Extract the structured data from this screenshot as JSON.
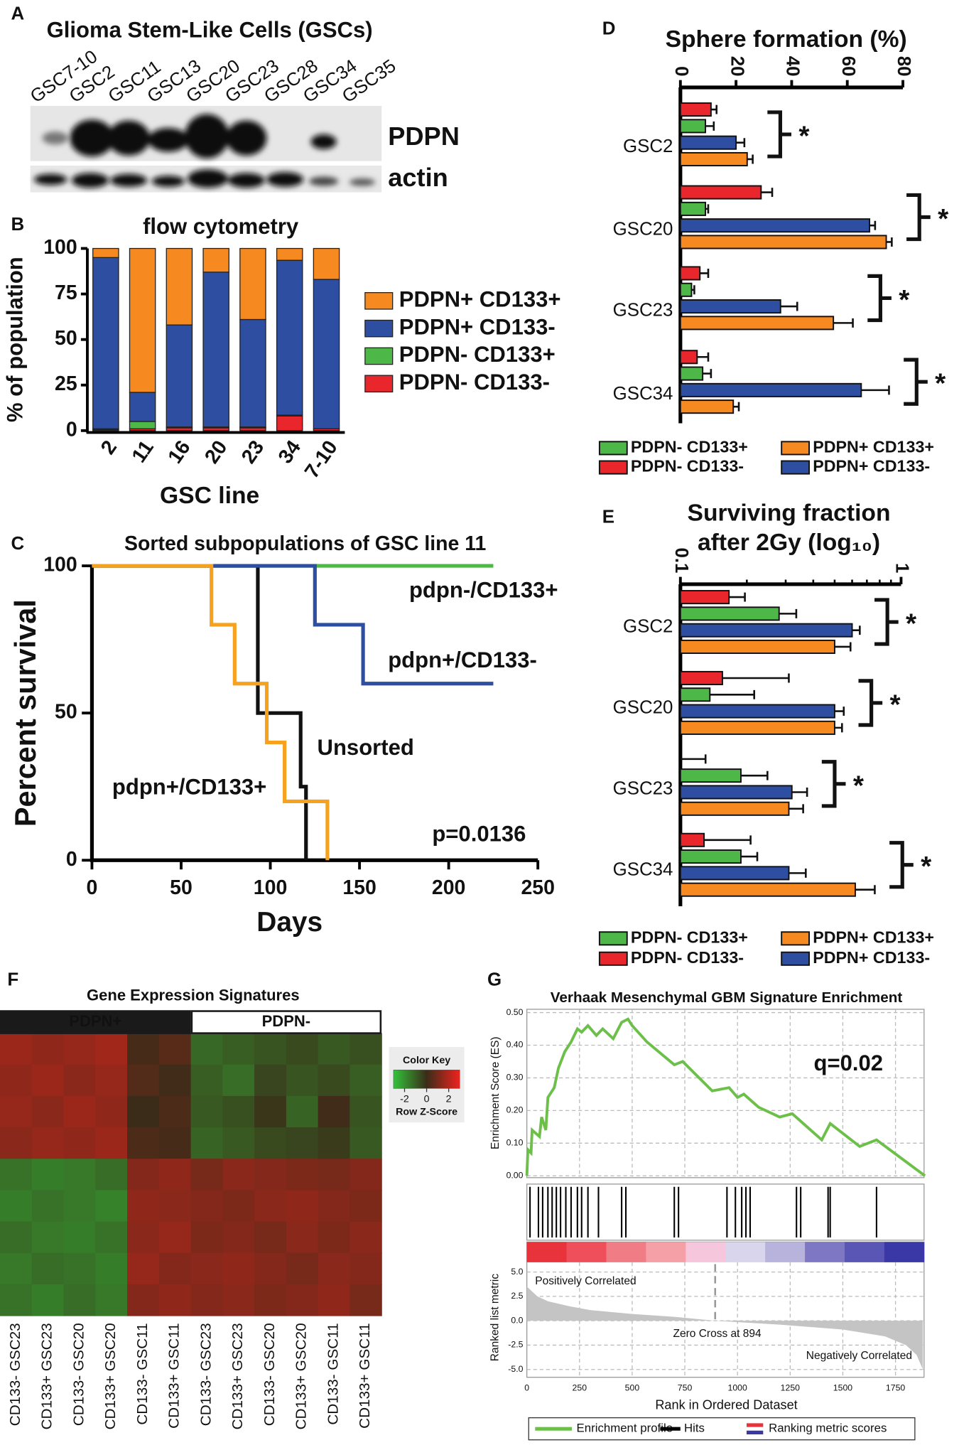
{
  "panel_labels": [
    "A",
    "B",
    "C",
    "D",
    "E",
    "F",
    "G"
  ],
  "blot": {
    "title": "Glioma Stem-Like Cells (GSCs)",
    "lanes": [
      "GSC7-10",
      "GSC2",
      "GSC11",
      "GSC13",
      "GSC20",
      "GSC23",
      "GSC28",
      "GSC34",
      "GSC35"
    ],
    "bands": [
      "PDPN",
      "actin"
    ]
  },
  "chart_data": [
    {
      "type": "bar",
      "stacked": true,
      "title": "flow cytometry",
      "xlabel": "GSC line",
      "ylabel": "% of population",
      "categories": [
        "2",
        "11",
        "16",
        "20",
        "23",
        "34",
        "7-10"
      ],
      "series": [
        {
          "name": "PDPN- CD133-",
          "color": "#e8262b",
          "values": [
            0.5,
            1,
            1.5,
            1.5,
            1.5,
            8,
            1
          ]
        },
        {
          "name": "PDPN- CD133+",
          "color": "#4db848",
          "values": [
            0.5,
            4,
            0.5,
            0.5,
            0.5,
            0.5,
            0
          ]
        },
        {
          "name": "PDPN+ CD133-",
          "color": "#2e4ea2",
          "values": [
            94,
            16,
            56,
            85,
            59,
            85,
            82
          ]
        },
        {
          "name": "PDPN+ CD133+",
          "color": "#f6891f",
          "values": [
            5,
            79,
            42,
            13,
            39,
            6.5,
            17
          ]
        }
      ],
      "ylim": [
        0,
        100
      ],
      "yticks": [
        0,
        25,
        50,
        75,
        100
      ]
    },
    {
      "type": "step",
      "title": "Sorted subpopulations of GSC line 11",
      "xlabel": "Days",
      "ylabel": "Percent survival",
      "series": [
        {
          "name": "pdpn-/CD133+",
          "color": "#4db848",
          "x": [
            0,
            225
          ],
          "y": [
            100,
            100
          ]
        },
        {
          "name": "Unsorted",
          "color": "#111111",
          "x": [
            0,
            93,
            117,
            120
          ],
          "y": [
            100,
            50,
            25,
            0
          ]
        },
        {
          "name": "pdpn+/CD133-",
          "color": "#2e4ea2",
          "x": [
            0,
            125,
            152,
            225
          ],
          "y": [
            100,
            80,
            60,
            60
          ]
        },
        {
          "name": "pdpn+/CD133+",
          "color": "#f6a21f",
          "x": [
            0,
            67,
            80,
            98,
            108,
            132
          ],
          "y": [
            100,
            80,
            60,
            40,
            20,
            0
          ]
        }
      ],
      "annotations": [
        "p=0.0136"
      ],
      "xlim": [
        0,
        250
      ],
      "xticks": [
        0,
        50,
        100,
        150,
        200,
        250
      ],
      "ylim": [
        0,
        100
      ],
      "yticks": [
        0,
        50,
        100
      ]
    },
    {
      "type": "barh",
      "title": [
        "Sphere formation (%)"
      ],
      "categories": [
        "GSC2",
        "GSC20",
        "GSC23",
        "GSC34"
      ],
      "series": [
        {
          "name": "PDPN- CD133-",
          "color": "#e8262b",
          "values": [
            11,
            29,
            7,
            6
          ],
          "errors": [
            2,
            4,
            3,
            4
          ]
        },
        {
          "name": "PDPN- CD133+",
          "color": "#4db848",
          "values": [
            9,
            9,
            4,
            8
          ],
          "errors": [
            3,
            1,
            1,
            3
          ]
        },
        {
          "name": "PDPN+ CD133-",
          "color": "#2e4ea2",
          "values": [
            20,
            68,
            36,
            65
          ],
          "errors": [
            3,
            2,
            6,
            10
          ]
        },
        {
          "name": "PDPN+ CD133+",
          "color": "#f6891f",
          "values": [
            24,
            74,
            55,
            19
          ],
          "errors": [
            2,
            2,
            7,
            2
          ]
        }
      ],
      "xlim": [
        0,
        80
      ],
      "xticks": [
        0,
        20,
        40,
        60,
        80
      ],
      "annotations": [
        "*",
        "*",
        "*",
        "*"
      ]
    },
    {
      "type": "barh",
      "log": true,
      "title": [
        "Surviving fraction",
        "after 2Gy (log₁₀)"
      ],
      "categories": [
        "GSC2",
        "GSC20",
        "GSC23",
        "GSC34"
      ],
      "series": [
        {
          "name": "PDPN- CD133-",
          "color": "#e8262b",
          "values": [
            0.166,
            0.155,
            0.1,
            0.128
          ],
          "errors": [
            0.03,
            0.155,
            0.03,
            0.08
          ]
        },
        {
          "name": "PDPN- CD133+",
          "color": "#4db848",
          "values": [
            0.28,
            0.136,
            0.188,
            0.188
          ],
          "errors": [
            0.055,
            0.08,
            0.06,
            0.035
          ]
        },
        {
          "name": "PDPN+ CD133-",
          "color": "#2e4ea2",
          "values": [
            0.6,
            0.5,
            0.32,
            0.31
          ],
          "errors": [
            0.05,
            0.05,
            0.055,
            0.06
          ]
        },
        {
          "name": "PDPN+ CD133+",
          "color": "#f6891f",
          "values": [
            0.5,
            0.5,
            0.31,
            0.62
          ],
          "errors": [
            0.09,
            0.04,
            0.05,
            0.14
          ]
        }
      ],
      "xlim": [
        0.1,
        1
      ],
      "xticks": [
        0.1,
        1
      ],
      "xminorticks": [
        0.2,
        0.3,
        0.4,
        0.5,
        0.6,
        0.7,
        0.8,
        0.9
      ],
      "annotations": [
        "*",
        "*",
        "*",
        "*"
      ]
    },
    {
      "type": "heatmap",
      "title": "Gene Expression Signatures",
      "groups": [
        {
          "label": "PDPN+",
          "columns": 6
        },
        {
          "label": "PDPN-",
          "columns": 6
        }
      ],
      "columns": [
        "CD133- GSC23",
        "CD133+ GSC23",
        "CD133- GSC20",
        "CD133+ GSC20",
        "CD133- GSC11",
        "CD133+ GSC11",
        "CD133- GSC23",
        "CD133+ GSC23",
        "CD133- GSC20",
        "CD133+ GSC20",
        "CD133- GSC11",
        "CD133+ GSC11"
      ],
      "values": [
        [
          1.6,
          1.4,
          1.5,
          1.7,
          0.2,
          0.5,
          -1.2,
          -1.0,
          -0.8,
          -0.6,
          -0.9,
          -0.7
        ],
        [
          1.4,
          1.6,
          1.3,
          1.5,
          0.4,
          0.1,
          -1.0,
          -1.3,
          -0.5,
          -0.8,
          -0.6,
          -1.0
        ],
        [
          1.5,
          1.3,
          1.6,
          1.4,
          0.0,
          0.3,
          -0.9,
          -0.7,
          -0.2,
          -1.1,
          0.1,
          -0.8
        ],
        [
          1.3,
          1.5,
          1.4,
          1.6,
          0.3,
          0.2,
          -1.1,
          -0.9,
          -0.6,
          -0.5,
          -0.3,
          -0.9
        ],
        [
          -1.4,
          -1.6,
          -1.5,
          -1.3,
          1.2,
          1.4,
          1.0,
          1.3,
          1.2,
          1.1,
          1.0,
          1.2
        ],
        [
          -1.6,
          -1.4,
          -1.5,
          -1.7,
          1.4,
          1.3,
          1.2,
          1.1,
          1.3,
          1.4,
          1.2,
          1.1
        ],
        [
          -1.3,
          -1.5,
          -1.6,
          -1.4,
          1.3,
          1.5,
          1.1,
          1.2,
          1.0,
          1.3,
          1.1,
          1.3
        ],
        [
          -1.5,
          -1.3,
          -1.4,
          -1.6,
          1.5,
          1.2,
          1.3,
          1.4,
          1.2,
          1.0,
          1.3,
          1.2
        ],
        [
          -1.4,
          -1.6,
          -1.3,
          -1.5,
          1.2,
          1.4,
          1.2,
          1.3,
          1.1,
          1.2,
          1.4,
          1.0
        ]
      ],
      "colors": [
        "#33c33a",
        "#3a2c18",
        "#f0231e"
      ],
      "color_key": {
        "title": "Color Key",
        "xlabel": "Row Z-Score",
        "lim": [
          -3,
          3
        ],
        "ticks": [
          -2,
          0,
          2
        ]
      }
    },
    {
      "type": "line",
      "title": "Verhaak Mesenchymal GBM Signature Enrichment",
      "ylabel": "Enrichment Score (ES)",
      "grid": true,
      "series": [
        {
          "name": "Enrichment profile",
          "color": "#6cc04a",
          "x": [
            0,
            5,
            20,
            25,
            60,
            70,
            90,
            100,
            130,
            150,
            180,
            210,
            240,
            260,
            290,
            330,
            360,
            410,
            450,
            480,
            500,
            570,
            700,
            740,
            880,
            960,
            1000,
            1030,
            1100,
            1200,
            1260,
            1400,
            1440,
            1580,
            1660,
            1890
          ],
          "values": [
            0,
            0.08,
            0.07,
            0.14,
            0.12,
            0.18,
            0.14,
            0.24,
            0.27,
            0.33,
            0.38,
            0.41,
            0.45,
            0.44,
            0.46,
            0.43,
            0.45,
            0.42,
            0.47,
            0.48,
            0.46,
            0.41,
            0.34,
            0.35,
            0.26,
            0.27,
            0.24,
            0.25,
            0.21,
            0.18,
            0.19,
            0.11,
            0.16,
            0.09,
            0.11,
            0
          ]
        }
      ],
      "annotations": [
        "q=0.02"
      ],
      "xlim": [
        0,
        1890
      ],
      "xticks": [
        0,
        250,
        500,
        750,
        1000,
        1250,
        1500,
        1750
      ],
      "ylim": [
        0,
        0.51
      ],
      "yticks": [
        {
          "value": 0,
          "label": "0.00"
        },
        {
          "value": 0.1,
          "label": "0.10"
        },
        {
          "value": 0.2,
          "label": "0.20"
        },
        {
          "value": 0.3,
          "label": "0.30"
        },
        {
          "value": 0.4,
          "label": "0.40"
        },
        {
          "value": 0.5,
          "label": "0.50"
        }
      ]
    },
    {
      "type": "rug",
      "name": "Hits",
      "color": "#000000",
      "values": [
        15,
        55,
        75,
        100,
        120,
        140,
        160,
        185,
        210,
        240,
        260,
        290,
        340,
        450,
        470,
        700,
        720,
        950,
        990,
        1020,
        1040,
        1060,
        1280,
        1300,
        1430,
        1440,
        1660
      ],
      "xlim": [
        0,
        1890
      ]
    },
    {
      "type": "area",
      "xlabel": "Rank in Ordered Dataset",
      "ylabel": "Ranked list metric",
      "grid": true,
      "color": "#c4c4c4",
      "x": [
        0,
        50,
        100,
        200,
        300,
        500,
        700,
        894,
        1200,
        1500,
        1700,
        1800,
        1850,
        1880
      ],
      "values": [
        3.5,
        2.5,
        2.0,
        1.5,
        1.1,
        0.7,
        0.4,
        0,
        -0.4,
        -0.9,
        -1.6,
        -2.5,
        -3.5,
        -5.0
      ],
      "zero_cross": 894,
      "annotations": [
        "Positively Correlated",
        "Zero Cross at 894",
        "Negatively Correlated"
      ],
      "color_bar": {
        "name": "Ranking metric scores",
        "colors": [
          "#e8333c",
          "#ee4f5a",
          "#f07d85",
          "#f4a0a6",
          "#f5c6dc",
          "#d8d5ec",
          "#b8b3dd",
          "#7e78c4",
          "#5a56b6",
          "#3a37a6"
        ]
      },
      "xlim": [
        0,
        1890
      ],
      "xticks": [
        0,
        250,
        500,
        750,
        1000,
        1250,
        1500,
        1750
      ],
      "ylim": [
        -5.8,
        6
      ],
      "yticks": [
        {
          "value": 5,
          "label": "5.0"
        },
        2.5,
        {
          "value": 0,
          "label": "0.0"
        },
        -2.5,
        {
          "value": -5,
          "label": "-5.0"
        }
      ]
    }
  ]
}
